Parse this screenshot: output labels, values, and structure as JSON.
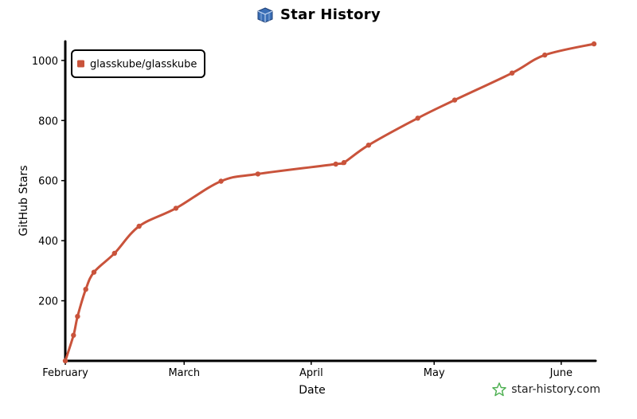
{
  "header": {
    "title": "Star History"
  },
  "brand": {
    "text": "star-history.com"
  },
  "chart_data": {
    "type": "line",
    "title": "Star History",
    "xlabel": "Date",
    "ylabel": "GitHub Stars",
    "x_ticks": [
      "February",
      "March",
      "April",
      "May",
      "June"
    ],
    "y_ticks": [
      200,
      400,
      600,
      800,
      1000
    ],
    "ylim": [
      0,
      1050
    ],
    "xlim": [
      "2024-02-01",
      "2024-06-09"
    ],
    "grid": false,
    "legend_position": "top-left",
    "series": [
      {
        "name": "glasskube/glasskube",
        "color": "#c9533b",
        "x": [
          "2024-02-01",
          "2024-02-03",
          "2024-02-04",
          "2024-02-06",
          "2024-02-08",
          "2024-02-13",
          "2024-02-19",
          "2024-02-28",
          "2024-03-10",
          "2024-03-19",
          "2024-04-07",
          "2024-04-09",
          "2024-04-15",
          "2024-04-27",
          "2024-05-06",
          "2024-05-20",
          "2024-05-28",
          "2024-06-09"
        ],
        "y": [
          0,
          85,
          148,
          238,
          295,
          358,
          448,
          508,
          598,
          622,
          655,
          660,
          718,
          808,
          868,
          958,
          1018,
          1055
        ]
      }
    ]
  }
}
